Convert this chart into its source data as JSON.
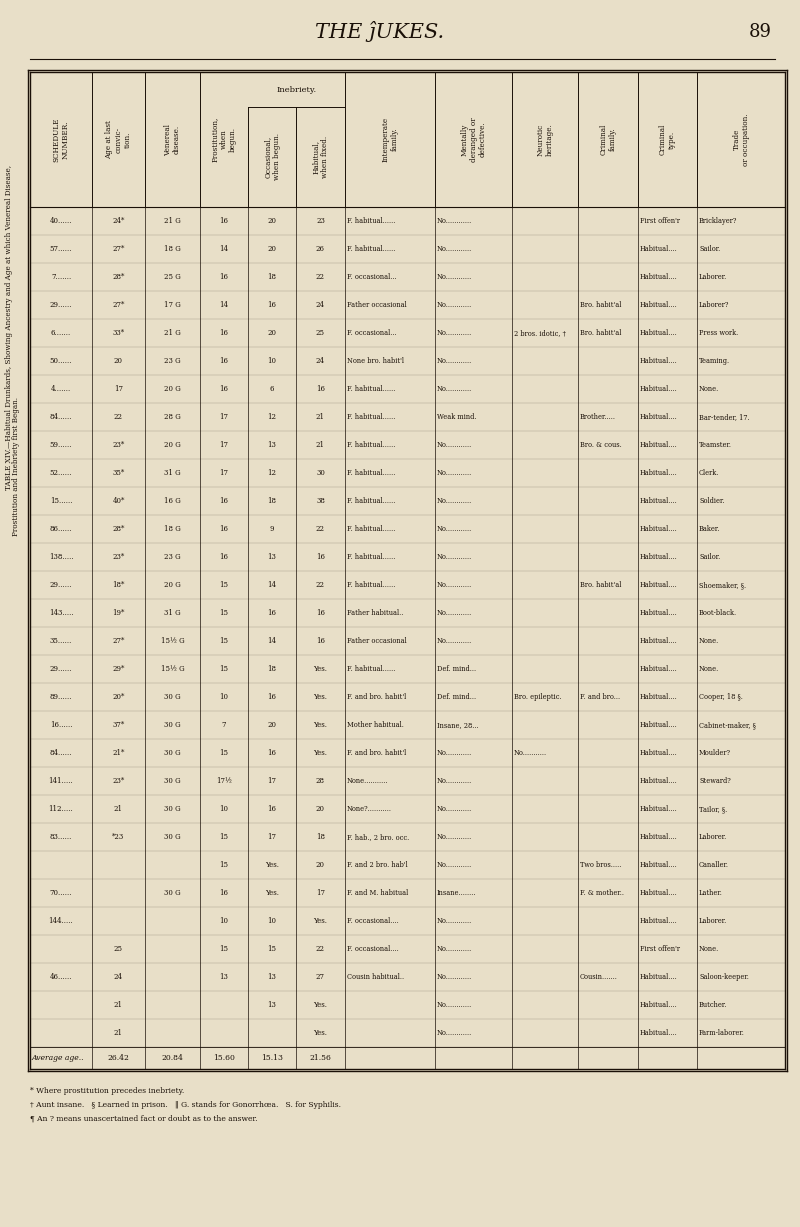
{
  "page_title": "THE ĵUKES.",
  "page_number": "89",
  "bg_color": "#e8dfc8",
  "text_color": "#1a1008",
  "side_title_line1": "TABLE XIV.—Habitual Drunkards, Showing Ancestry and Age at which Venereal Disease,",
  "side_title_line2": "Prostitution and Inebriety first Began.",
  "col_headers_rotated": [
    "SCHEDULE\nNUMBER.",
    "Age at last convic-\ntion.",
    "Venereal disease.",
    "Prostitution, when\nbegun.",
    "Occasional,\nwhen begun.",
    "Habitual,\nwhen fixed.",
    "Intemperate\nfamily.",
    "Mentally\nderanged or\ndefective.",
    "Neurotic\nheritage.",
    "Criminal\nfamily.",
    "Criminal\ntype.",
    "Trade\nor occupation."
  ],
  "inebriety_label": "Inebriety.",
  "rows": [
    [
      "40......",
      "24*",
      "21",
      "G",
      "16",
      "20",
      "23",
      "F. habitual......",
      "No............",
      ".............",
      ".............",
      "First offen'r",
      "Bricklayer?"
    ],
    [
      "57......",
      "27*",
      "18",
      "G",
      "14",
      "20",
      "26",
      "F. habitual......",
      "No............",
      ".............",
      ".............",
      "Habitual....",
      "Sailor."
    ],
    [
      "7.......",
      "28*",
      "25",
      "G",
      "16",
      "18",
      "22",
      "F. occasional...",
      "No............",
      ".............",
      ".............",
      "Habitual....",
      "Laborer."
    ],
    [
      "29......",
      "27*",
      "17",
      "G",
      "14",
      "16",
      "24",
      "Father occasional",
      "No............",
      ".............",
      "Bro. habit'al",
      "Habitual....",
      "Laborer?"
    ],
    [
      "6.......",
      "33*",
      "21",
      "G",
      "16",
      "20",
      "25",
      "F. occasional...",
      "No............",
      "2 bros. idotic, †",
      "Bro. habit'al",
      "Habitual....",
      "Press work."
    ],
    [
      "50......",
      "20",
      "23",
      "G",
      "16",
      "10",
      "24",
      "None bro. habit'l",
      "No............",
      ".............",
      ".............",
      "Habitual....",
      "Teaming."
    ],
    [
      "4.......",
      "17",
      "20",
      "G",
      "16",
      "6",
      "16",
      "F. habitual......",
      "No............",
      ".............",
      ".............",
      "Habitual....",
      "None."
    ],
    [
      "84......",
      "22",
      "28",
      "G",
      "17",
      "12",
      "21",
      "F. habitual......",
      "Weak mind.",
      ".............",
      "Brother.....",
      "Habitual....",
      "Bar-tender, 17."
    ],
    [
      "59......",
      "23*",
      "20",
      "G",
      "17",
      "13",
      "21",
      "F. habitual......",
      "No............",
      ".............",
      "Bro. & cous.",
      "Habitual....",
      "Teamster."
    ],
    [
      "52......",
      "35*",
      "31",
      "G",
      "17",
      "12",
      "30",
      "F. habitual......",
      "No............",
      ".............",
      ".............",
      "Habitual....",
      "Clerk."
    ],
    [
      "15......",
      "40*",
      "16",
      "G",
      "16",
      "18",
      "38",
      "F. habitual......",
      "No............",
      ".............",
      ".............",
      "Habitual....",
      "Soldier."
    ],
    [
      "86......",
      "28*",
      "18",
      "G",
      "16",
      "9",
      "22",
      "F. habitual......",
      "No............",
      ".............",
      ".............",
      "Habitual....",
      "Baker."
    ],
    [
      "138.....",
      "23*",
      "23",
      "G",
      "16",
      "13",
      "16",
      "F. habitual......",
      "No............",
      ".............",
      ".............",
      "Habitual....",
      "Sailor."
    ],
    [
      "29......",
      "18*",
      "20",
      "G",
      "15",
      "14",
      "22",
      "F. habitual......",
      "No............",
      ".............",
      "Bro. habit'al",
      "Habitual....",
      "Shoemaker, §."
    ],
    [
      "143.....",
      "19*",
      "31",
      "G",
      "15",
      "16",
      "16",
      "Father habitual..",
      "No............",
      ".............",
      ".............",
      "Habitual....",
      "Boot-black."
    ],
    [
      "35......",
      "27*",
      "15½",
      "G",
      "15",
      "14",
      "16",
      "Father occasional",
      "No............",
      ".............",
      ".............",
      "Habitual....",
      "None."
    ],
    [
      "29......",
      "29*",
      "15½",
      "G",
      "15",
      "18",
      "Yes.",
      "F. habitual......",
      "Def. mind...",
      ".............",
      ".............",
      "Habitual....",
      "None."
    ],
    [
      "89......",
      "20*",
      "30",
      "G",
      "10",
      "16",
      "Yes.",
      "F. and bro. habit'l",
      "Def. mind...",
      "Bro. epileptic.",
      "F. and bro...",
      "Habitual....",
      "Cooper, 18 §."
    ],
    [
      "16......",
      "37*",
      "30",
      "G",
      "7",
      "20",
      "Yes.",
      "Mother habitual.",
      "Insane, 28...",
      ".............",
      ".............",
      "Habitual....",
      "Cabinet-maker, §"
    ],
    [
      "84......",
      "21*",
      "30",
      "G",
      "15",
      "16",
      "Yes.",
      "F. and bro. habit'l",
      "No............",
      "No...........",
      ".............",
      "Habitual....",
      "Moulder?"
    ],
    [
      "141.....",
      "23*",
      "30",
      "G",
      "17½",
      "17",
      "28",
      "None...........",
      "No............",
      ".............",
      ".............",
      "Habitual....",
      "Steward?"
    ],
    [
      "112.....",
      "21",
      "30",
      "G",
      "10",
      "16",
      "20",
      "None?...........",
      "No............",
      ".............",
      ".............",
      "Habitual....",
      "Tailor, §."
    ],
    [
      "83......",
      "*23",
      "30",
      "G",
      "15",
      "17",
      "18",
      "F. hab., 2 bro. occ.",
      "No............",
      ".............",
      ".............",
      "Habitual....",
      "Laborer."
    ],
    [
      "........",
      "......",
      "",
      "",
      "15",
      "Yes.",
      "20",
      "F. and 2 bro. hab'l",
      "No............",
      ".............",
      "Two bros.....",
      "Habitual....",
      "Canaller."
    ],
    [
      "70......",
      "......",
      "30",
      "G",
      "16",
      "Yes.",
      "17",
      "F. and M. habitual",
      "Insane........",
      ".............",
      "F. & mother..",
      "Habitual....",
      "Lather."
    ],
    [
      "144.....",
      "......",
      "",
      "",
      "10",
      "10",
      "Yes.",
      "F. occasional....",
      "No............",
      ".............",
      ".............",
      "Habitual....",
      "Laborer."
    ],
    [
      "........",
      "25",
      "",
      "",
      "15",
      "15",
      "22",
      "F. occasional....",
      "No............",
      ".............",
      ".............",
      "First offen'r",
      "None."
    ],
    [
      "46......",
      "24",
      "",
      "",
      "13",
      "13",
      "27",
      "Cousin habitual..",
      "No............",
      ".............",
      "Cousin.......",
      "Habitual....",
      "Saloon-keeper."
    ],
    [
      "........",
      "21",
      "",
      "",
      "",
      "13",
      "Yes.",
      "...............",
      "No............",
      ".............",
      ".............",
      "Habitual....",
      "Butcher."
    ],
    [
      "........",
      "21",
      "",
      "",
      "",
      "",
      "Yes.",
      "...............",
      "No............",
      ".............",
      ".............",
      "Habitual....",
      "Farm-laborer."
    ]
  ],
  "avg_label": "Average age..",
  "averages": [
    "26.42",
    "20.84",
    "15.60",
    "15.13",
    "21.56"
  ],
  "footnote1": "* Where prostitution precedes inebriety.",
  "footnote2": "† Aunt insane.   § Learned in prison.   ‖ G. stands for Gonorrhœa.   S. for Syphilis.",
  "footnote3": "¶ An ? means unascertained fact or doubt as to the answer."
}
